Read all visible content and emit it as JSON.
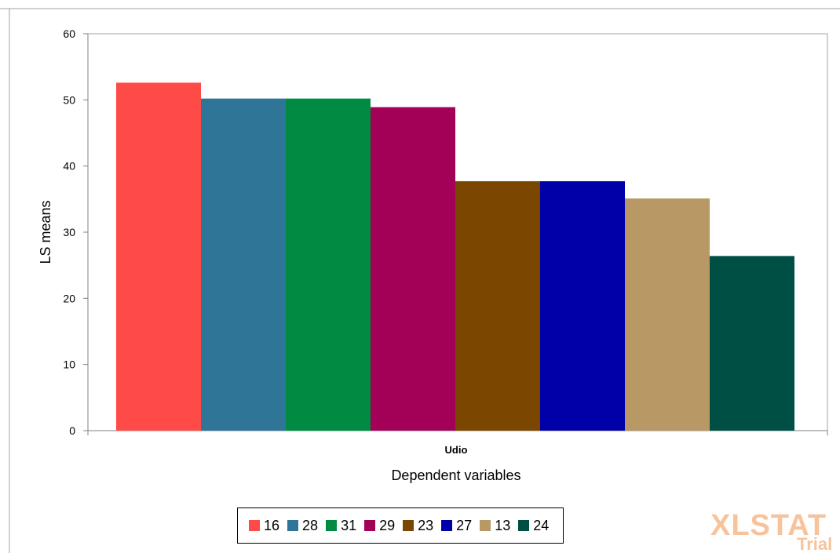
{
  "chart_data": {
    "type": "bar",
    "categories": [
      "Udio"
    ],
    "series": [
      {
        "name": "16",
        "values": [
          52.6
        ],
        "color": "#ff4b47"
      },
      {
        "name": "28",
        "values": [
          50.2
        ],
        "color": "#2e7598"
      },
      {
        "name": "31",
        "values": [
          50.2
        ],
        "color": "#008a42"
      },
      {
        "name": "29",
        "values": [
          48.9
        ],
        "color": "#a30057"
      },
      {
        "name": "23",
        "values": [
          37.7
        ],
        "color": "#7b4700"
      },
      {
        "name": "27",
        "values": [
          37.7
        ],
        "color": "#0000a8"
      },
      {
        "name": "13",
        "values": [
          35.1
        ],
        "color": "#b89865"
      },
      {
        "name": "24",
        "values": [
          26.4
        ],
        "color": "#004f45"
      }
    ],
    "xlabel": "Dependent variables",
    "ylabel": "LS means",
    "ylim": [
      0,
      60
    ],
    "yticks": [
      "0",
      "10",
      "20",
      "30",
      "40",
      "50",
      "60"
    ],
    "legend_position": "bottom",
    "grid": false
  },
  "watermark": {
    "main": "XLSTAT",
    "sub": "Trial"
  }
}
